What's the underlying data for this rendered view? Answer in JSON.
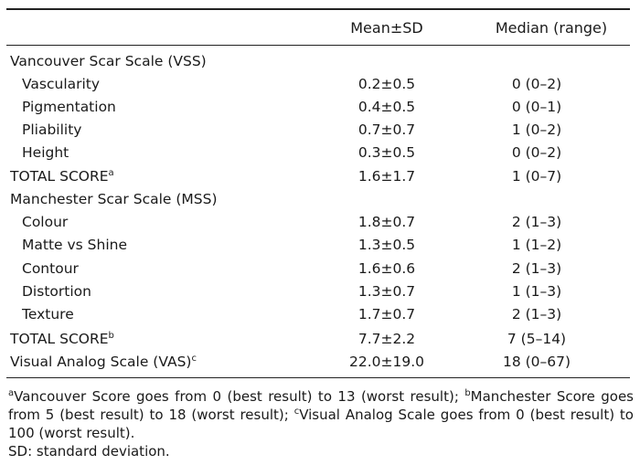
{
  "header": {
    "mean_sd": "Mean±SD",
    "median_range": "Median (range)"
  },
  "rows": [
    {
      "label": "Vancouver Scar Scale (VSS)",
      "mean": "",
      "median": "",
      "sup": ""
    },
    {
      "label": "Vascularity",
      "mean": "0.2±0.5",
      "median": "0 (0–2)",
      "sup": ""
    },
    {
      "label": "Pigmentation",
      "mean": "0.4±0.5",
      "median": "0 (0–1)",
      "sup": ""
    },
    {
      "label": "Pliability",
      "mean": "0.7±0.7",
      "median": "1 (0–2)",
      "sup": ""
    },
    {
      "label": "Height",
      "mean": "0.3±0.5",
      "median": "0 (0–2)",
      "sup": ""
    },
    {
      "label": "TOTAL SCORE",
      "mean": "1.6±1.7",
      "median": "1 (0–7)",
      "sup": "a"
    },
    {
      "label": "Manchester Scar Scale (MSS)",
      "mean": "",
      "median": "",
      "sup": ""
    },
    {
      "label": "Colour",
      "mean": "1.8±0.7",
      "median": "2 (1–3)",
      "sup": ""
    },
    {
      "label": "Matte vs Shine",
      "mean": "1.3±0.5",
      "median": "1 (1–2)",
      "sup": ""
    },
    {
      "label": "Contour",
      "mean": "1.6±0.6",
      "median": "2 (1–3)",
      "sup": ""
    },
    {
      "label": "Distortion",
      "mean": "1.3±0.7",
      "median": "1 (1–3)",
      "sup": ""
    },
    {
      "label": "Texture",
      "mean": "1.7±0.7",
      "median": "2 (1–3)",
      "sup": ""
    },
    {
      "label": "TOTAL SCORE",
      "mean": "7.7±2.2",
      "median": "7 (5–14)",
      "sup": "b"
    },
    {
      "label": "Visual Analog Scale (VAS)",
      "mean": "22.0±19.0",
      "median": "18 (0–67)",
      "sup": "c"
    }
  ],
  "footnotes": {
    "a_mark": "a",
    "a_text": "Vancouver Score goes from 0 (best result) to 13 (worst result); ",
    "b_mark": "b",
    "b_text": "Manchester Score goes from 5 (best result) to 18 (worst result); ",
    "c_mark": "c",
    "c_text": "Visual Analog Scale goes from 0 (best result) to 100 (worst result).",
    "sd": "SD: standard deviation."
  }
}
